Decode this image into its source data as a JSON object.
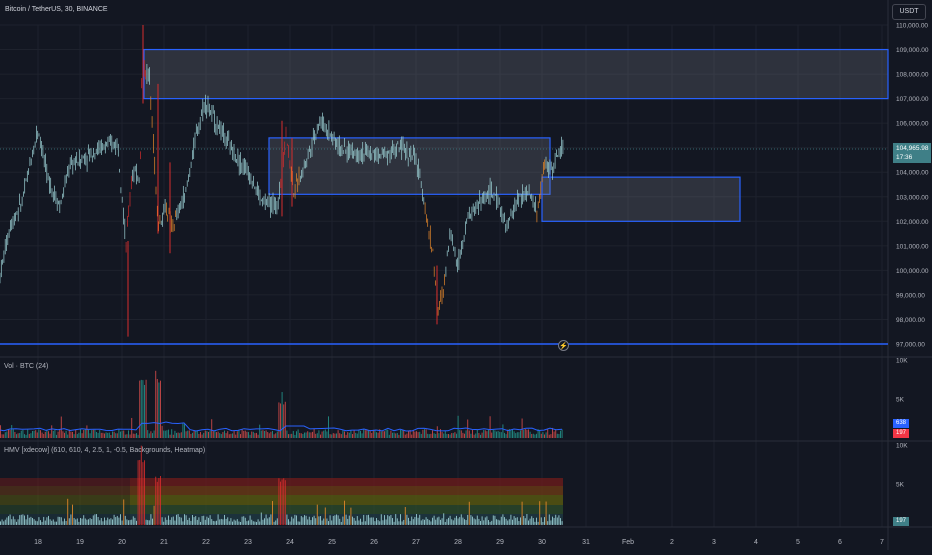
{
  "header": {
    "symbol_title": "Bitcoin / TetherUS, 30, BINANCE",
    "currency": "USDT"
  },
  "price_axis": {
    "ticks": [
      "110,000.00",
      "109,000.00",
      "108,000.00",
      "107,000.00",
      "106,000.00",
      "105,000.00",
      "104,000.00",
      "103,000.00",
      "102,000.00",
      "101,000.00",
      "100,000.00",
      "99,000.00",
      "98,000.00",
      "97,000.00"
    ],
    "tick_values": [
      110000,
      109000,
      108000,
      107000,
      106000,
      105000,
      104000,
      103000,
      102000,
      101000,
      100000,
      99000,
      98000,
      97000
    ]
  },
  "last_price": {
    "value": "104,965.98",
    "countdown": "17:36",
    "color": "#3f7f87"
  },
  "volume_pane": {
    "label": "Vol · BTC (24)",
    "axis_ticks": [
      "10K",
      "5K"
    ],
    "ma_badge": "638",
    "vol_badge": "197",
    "ma_color": "#2962ff",
    "vol_color": "#f23645"
  },
  "hmv_pane": {
    "label": "HMV [xdecow] (610, 610, 4, 2.5, 1, -0.5, Backgrounds, Heatmap)",
    "axis_ticks": [
      "10K",
      "5K"
    ],
    "badge": "197",
    "badge_color": "#3f7f87"
  },
  "time_axis": {
    "labels": [
      "18",
      "19",
      "20",
      "21",
      "22",
      "23",
      "24",
      "25",
      "26",
      "27",
      "28",
      "29",
      "30",
      "31",
      "Feb",
      "2",
      "3",
      "4",
      "5",
      "6",
      "7"
    ]
  },
  "zones": {
    "color": "#2962ff",
    "items": [
      {
        "top": 109000,
        "bottom": 107000,
        "name": "upper-zone"
      },
      {
        "top": 105400,
        "bottom": 103100,
        "name": "middle-zone"
      },
      {
        "top": 103800,
        "bottom": 102000,
        "name": "lower-right-zone"
      }
    ],
    "support_line": 97000
  },
  "colors": {
    "background": "#131722",
    "candle_main": "#9ed4d8",
    "candle_orange": "#e8892b",
    "candle_red": "#d62d2d",
    "grid": "#1e222d"
  }
}
